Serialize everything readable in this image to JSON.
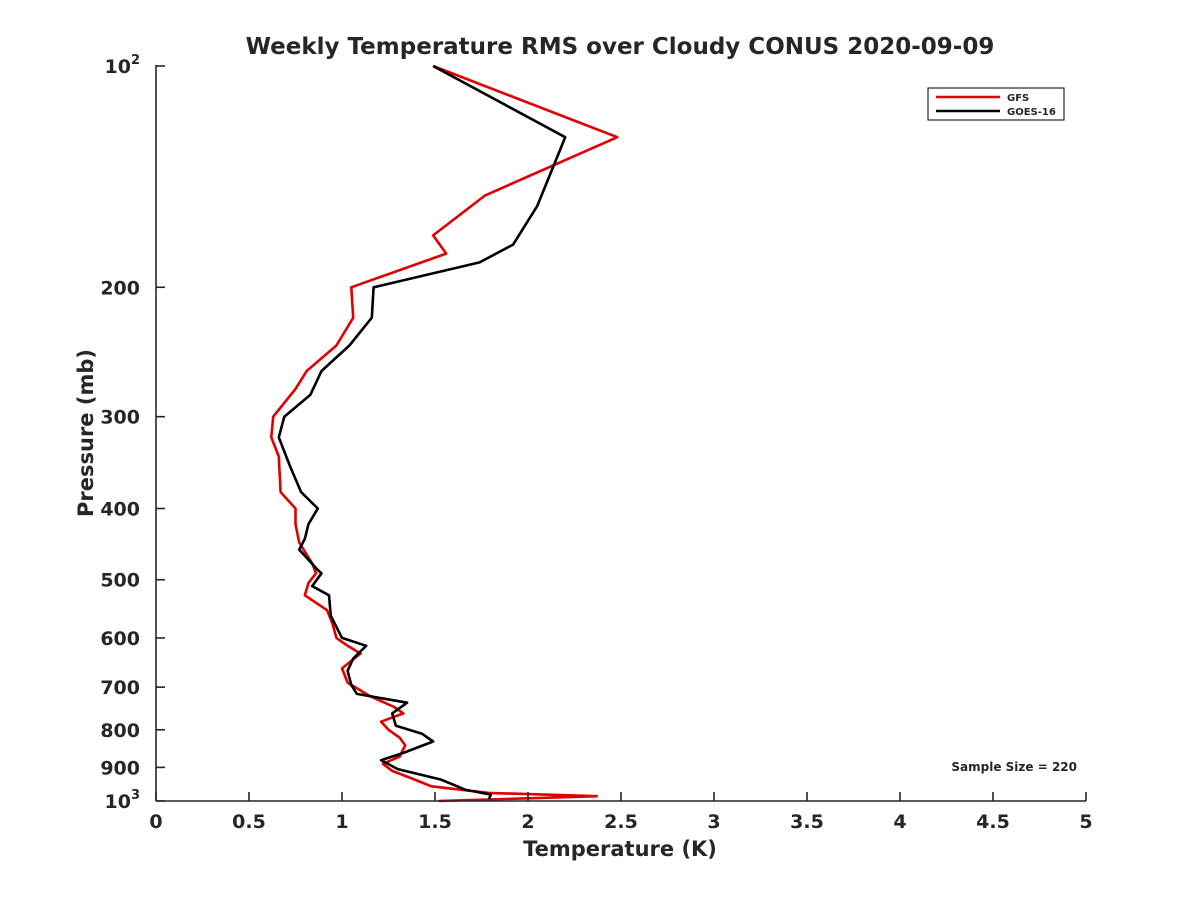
{
  "chart_data": {
    "type": "line",
    "title": "Weekly Temperature RMS over Cloudy CONUS 2020-09-09",
    "xlabel": "Temperature (K)",
    "ylabel": "Pressure (mb)",
    "xlim": [
      0,
      5
    ],
    "ylim": [
      100,
      1000
    ],
    "y_scale": "log",
    "y_reversed": true,
    "grid": false,
    "legend_position": "top-right",
    "x_ticks": [
      "0",
      "0.5",
      "1",
      "1.5",
      "2",
      "2.5",
      "3",
      "3.5",
      "4",
      "4.5",
      "5"
    ],
    "y_ticks": [
      {
        "value": 100,
        "base": "10",
        "exp": "2"
      },
      {
        "value": 200,
        "label": "200"
      },
      {
        "value": 300,
        "label": "300"
      },
      {
        "value": 400,
        "label": "400"
      },
      {
        "value": 500,
        "label": "500"
      },
      {
        "value": 600,
        "label": "600"
      },
      {
        "value": 700,
        "label": "700"
      },
      {
        "value": 800,
        "label": "800"
      },
      {
        "value": 900,
        "label": "900"
      },
      {
        "value": 1000,
        "base": "10",
        "exp": "3"
      }
    ],
    "annotation": "Sample Size = 220",
    "series": [
      {
        "name": "GFS",
        "color": "#e00000",
        "points": [
          [
            1.49,
            100
          ],
          [
            2.48,
            125
          ],
          [
            1.77,
            150
          ],
          [
            1.49,
            170
          ],
          [
            1.56,
            180
          ],
          [
            1.05,
            200
          ],
          [
            1.06,
            220
          ],
          [
            0.97,
            240
          ],
          [
            0.81,
            260
          ],
          [
            0.75,
            275
          ],
          [
            0.63,
            300
          ],
          [
            0.62,
            320
          ],
          [
            0.66,
            340
          ],
          [
            0.67,
            380
          ],
          [
            0.75,
            400
          ],
          [
            0.75,
            420
          ],
          [
            0.77,
            445
          ],
          [
            0.84,
            475
          ],
          [
            0.86,
            490
          ],
          [
            0.82,
            505
          ],
          [
            0.8,
            525
          ],
          [
            0.92,
            550
          ],
          [
            0.95,
            575
          ],
          [
            0.97,
            600
          ],
          [
            1.03,
            615
          ],
          [
            1.1,
            630
          ],
          [
            1.0,
            660
          ],
          [
            1.03,
            690
          ],
          [
            1.15,
            720
          ],
          [
            1.28,
            745
          ],
          [
            1.33,
            760
          ],
          [
            1.21,
            780
          ],
          [
            1.25,
            800
          ],
          [
            1.31,
            820
          ],
          [
            1.34,
            840
          ],
          [
            1.31,
            870
          ],
          [
            1.22,
            890
          ],
          [
            1.27,
            910
          ],
          [
            1.39,
            935
          ],
          [
            1.48,
            955
          ],
          [
            1.79,
            975
          ],
          [
            2.37,
            985
          ],
          [
            1.52,
            1000
          ]
        ]
      },
      {
        "name": "GOES-16",
        "color": "#000000",
        "points": [
          [
            1.49,
            100
          ],
          [
            2.2,
            125
          ],
          [
            2.05,
            155
          ],
          [
            1.92,
            175
          ],
          [
            1.74,
            185
          ],
          [
            1.17,
            200
          ],
          [
            1.16,
            220
          ],
          [
            1.04,
            240
          ],
          [
            0.89,
            260
          ],
          [
            0.83,
            280
          ],
          [
            0.69,
            300
          ],
          [
            0.66,
            320
          ],
          [
            0.72,
            350
          ],
          [
            0.78,
            380
          ],
          [
            0.87,
            400
          ],
          [
            0.82,
            420
          ],
          [
            0.8,
            440
          ],
          [
            0.77,
            455
          ],
          [
            0.87,
            485
          ],
          [
            0.89,
            490
          ],
          [
            0.84,
            510
          ],
          [
            0.93,
            525
          ],
          [
            0.94,
            560
          ],
          [
            1.0,
            600
          ],
          [
            1.13,
            615
          ],
          [
            1.06,
            640
          ],
          [
            1.03,
            665
          ],
          [
            1.05,
            695
          ],
          [
            1.08,
            715
          ],
          [
            1.35,
            735
          ],
          [
            1.27,
            760
          ],
          [
            1.29,
            790
          ],
          [
            1.43,
            810
          ],
          [
            1.49,
            830
          ],
          [
            1.33,
            860
          ],
          [
            1.21,
            880
          ],
          [
            1.3,
            905
          ],
          [
            1.53,
            935
          ],
          [
            1.62,
            955
          ],
          [
            1.66,
            965
          ],
          [
            1.8,
            980
          ],
          [
            1.79,
            995
          ]
        ]
      }
    ]
  }
}
